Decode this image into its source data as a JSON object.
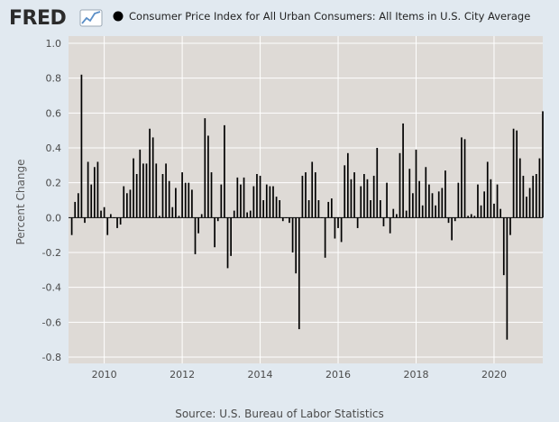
{
  "logo": {
    "text": "FRED"
  },
  "chart_data": {
    "type": "bar",
    "title": "Consumer Price Index for All Urban Consumers: All Items in U.S. City Average",
    "ylabel": "Percent Change",
    "xlabel": "",
    "ylim": [
      -0.8,
      1.0
    ],
    "yticks": [
      1.0,
      0.8,
      0.6,
      0.4,
      0.2,
      0.0,
      -0.2,
      -0.4,
      -0.6,
      -0.8
    ],
    "ytick_labels": [
      "1.0",
      "0.8",
      "0.6",
      "0.4",
      "0.2",
      "0.0",
      "-0.2",
      "-0.4",
      "-0.6",
      "-0.8"
    ],
    "xrange": [
      "2009-02",
      "2021-04"
    ],
    "xticks": [
      "2010",
      "2012",
      "2014",
      "2016",
      "2018",
      "2020"
    ],
    "grid": true,
    "legend": {
      "placement": "top",
      "entries": [
        "Consumer Price Index for All Urban Consumers: All Items in U.S. City Average"
      ]
    },
    "bar_color": "#000000",
    "start_month": "2009-03",
    "series": [
      {
        "values": [
          -0.1,
          0.09,
          0.14,
          0.82,
          -0.03,
          0.32,
          0.19,
          0.29,
          0.32,
          0.04,
          0.06,
          -0.1,
          0.02,
          0.0,
          -0.06,
          -0.04,
          0.18,
          0.14,
          0.16,
          0.34,
          0.25,
          0.39,
          0.31,
          0.31,
          0.51,
          0.46,
          0.31,
          0.01,
          0.25,
          0.31,
          0.21,
          0.06,
          0.17,
          0.01,
          0.26,
          0.2,
          0.2,
          0.16,
          -0.21,
          -0.09,
          0.02,
          0.57,
          0.47,
          0.26,
          -0.17,
          -0.02,
          0.19,
          0.53,
          -0.29,
          -0.22,
          0.04,
          0.23,
          0.19,
          0.23,
          0.03,
          0.04,
          0.18,
          0.25,
          0.24,
          0.1,
          0.19,
          0.18,
          0.18,
          0.12,
          0.1,
          -0.02,
          0.0,
          -0.03,
          -0.2,
          -0.32,
          -0.64,
          0.24,
          0.26,
          0.1,
          0.32,
          0.26,
          0.1,
          0.0,
          -0.23,
          0.09,
          0.11,
          -0.12,
          -0.06,
          -0.14,
          0.3,
          0.37,
          0.22,
          0.26,
          -0.06,
          0.18,
          0.25,
          0.22,
          0.1,
          0.24,
          0.4,
          0.1,
          -0.05,
          0.2,
          -0.09,
          0.05,
          0.02,
          0.37,
          0.54,
          0.04,
          0.28,
          0.14,
          0.39,
          0.21,
          0.07,
          0.29,
          0.19,
          0.14,
          0.07,
          0.15,
          0.17,
          0.27,
          -0.03,
          -0.13,
          -0.02,
          0.2,
          0.46,
          0.45,
          0.01,
          0.02,
          0.01,
          0.19,
          0.07,
          0.15,
          0.32,
          0.22,
          0.08,
          0.19,
          0.05,
          -0.33,
          -0.7,
          -0.1,
          0.51,
          0.5,
          0.34,
          0.24,
          0.12,
          0.17,
          0.24,
          0.25,
          0.34,
          0.61
        ]
      }
    ]
  },
  "footer": {
    "source": "Source: U.S. Bureau of Labor Statistics"
  }
}
